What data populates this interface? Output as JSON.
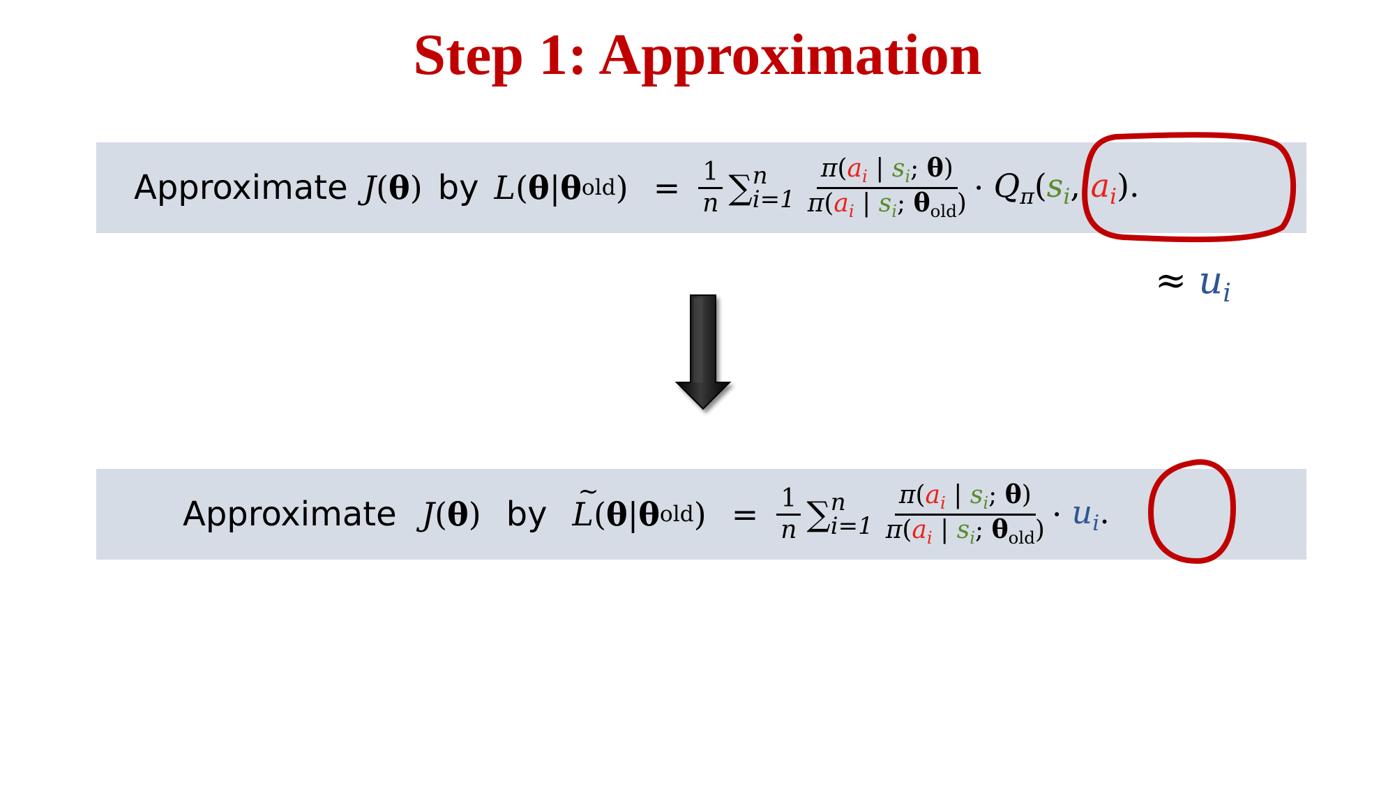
{
  "slide": {
    "title": "Step 1: Approximation",
    "line1": {
      "approximate": "Approximate",
      "J": "J",
      "theta": "θ",
      "by": "by",
      "L": "L",
      "old": "old",
      "equals": "=",
      "one": "1",
      "n": "n",
      "sum": "∑",
      "lower_limit": "i=1",
      "upper_limit": "n",
      "pi": "π",
      "a": "a",
      "s": "s",
      "i": "i",
      "Q": "Q",
      "cdot": "·"
    },
    "approx_label": {
      "symbol": "≈",
      "u": "u",
      "i": "i"
    },
    "line2": {
      "approximate": "Approximate",
      "J": "J",
      "theta": "θ",
      "by": "by",
      "L": "L",
      "old": "old",
      "equals": "=",
      "one": "1",
      "n": "n",
      "sum": "∑",
      "lower_limit": "i=1",
      "upper_limit": "n",
      "pi": "π",
      "a": "a",
      "s": "s",
      "i": "i",
      "u": "u",
      "cdot": "·"
    }
  },
  "colors": {
    "title": "#c00000",
    "band": "#d6dce5",
    "action": "#e8231c",
    "state": "#5a8a2e",
    "u": "#2f5597",
    "circle1": "#c00000",
    "circle2": "#c00000"
  },
  "icons": [
    "down-arrow-icon"
  ]
}
